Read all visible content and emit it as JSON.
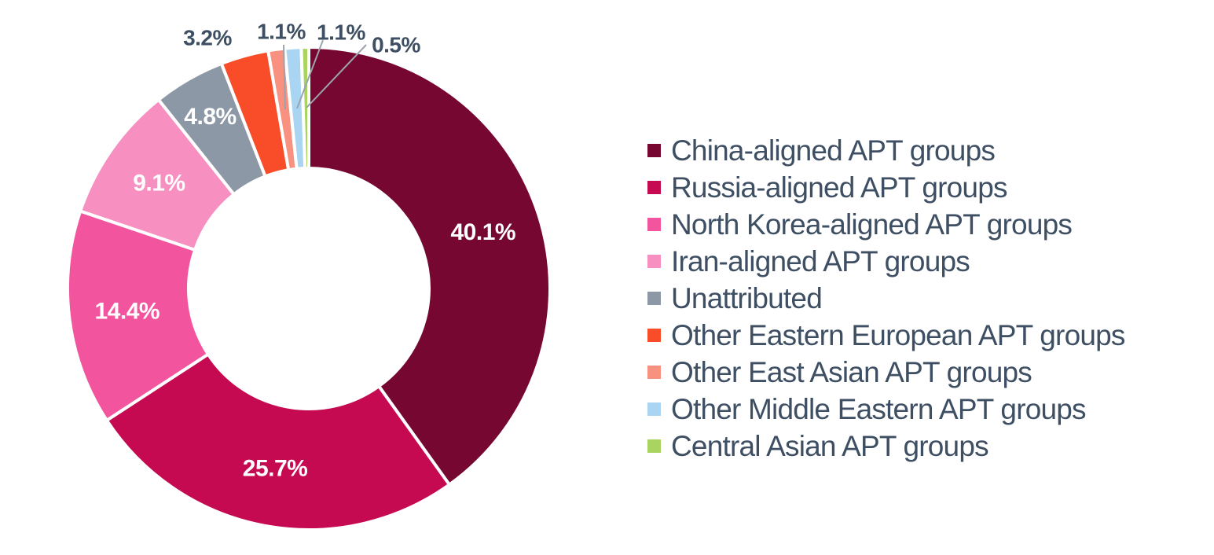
{
  "chart_data": {
    "type": "pie",
    "subtype": "donut",
    "legend_position": "right",
    "grid": false,
    "start_angle_deg": 0,
    "direction": "clockwise",
    "total": 100,
    "slices": [
      {
        "name": "China-aligned APT groups",
        "value": 40.1,
        "label": "40.1%",
        "color": "#750731"
      },
      {
        "name": "Russia-aligned APT groups",
        "value": 25.7,
        "label": "25.7%",
        "color": "#C50A52"
      },
      {
        "name": "North Korea-aligned APT groups",
        "value": 14.4,
        "label": "14.4%",
        "color": "#F2549D"
      },
      {
        "name": "Iran-aligned APT groups",
        "value": 9.1,
        "label": "9.1%",
        "color": "#F78FC0"
      },
      {
        "name": "Unattributed",
        "value": 4.8,
        "label": "4.8%",
        "color": "#8C98A5"
      },
      {
        "name": "Other Eastern European APT groups",
        "value": 3.2,
        "label": "3.2%",
        "color": "#F94D2A"
      },
      {
        "name": "Other East Asian APT groups",
        "value": 1.1,
        "label": "1.1%",
        "color": "#F8917F"
      },
      {
        "name": "Other Middle Eastern APT groups",
        "value": 1.1,
        "label": "1.1%",
        "color": "#AAD5F2"
      },
      {
        "name": "Central Asian APT groups",
        "value": 0.5,
        "label": "0.5%",
        "color": "#A8D45F"
      }
    ]
  },
  "colors": {
    "background": "#FFFFFF",
    "label_text": "#3E4F63",
    "inside_label_text": "#FFFFFF",
    "leader_line": "#9CA3AB"
  }
}
